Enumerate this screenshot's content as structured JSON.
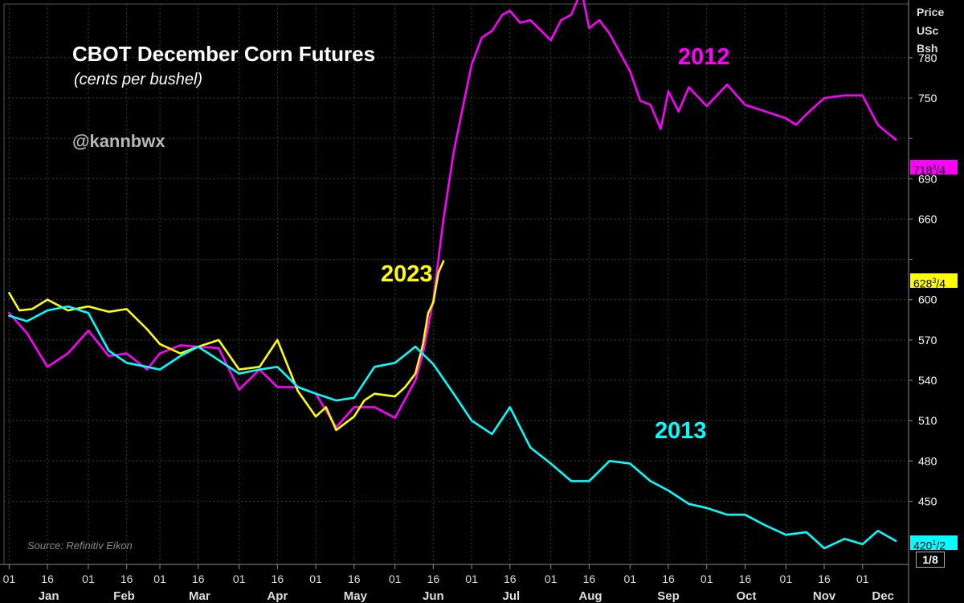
{
  "header": {
    "title": "CBOT December Corn Futures",
    "subtitle": "(cents per bushel)",
    "handle": "@kannbwx",
    "source": "Source: Refinitiv Eikon"
  },
  "y_axis_title": [
    "Price",
    "USc",
    "Bsh"
  ],
  "fraction_label": "1/8",
  "last_values": [
    {
      "main": "718",
      "frac": "3",
      "den": "/4",
      "color": "#ff00ff"
    },
    {
      "main": "628",
      "frac": "3",
      "den": "/4",
      "color": "#ffff00"
    },
    {
      "main": "420",
      "frac": "1",
      "den": "/2",
      "color": "#00ffff"
    }
  ],
  "chart_data": {
    "type": "line",
    "title": "CBOT December Corn Futures",
    "subtitle": "(cents per bushel)",
    "y_unit_label": "Price USc Bsh",
    "ylim": [
      403,
      820
    ],
    "yticks": [
      450,
      480,
      510,
      540,
      570,
      600,
      630,
      660,
      690,
      720,
      750,
      780
    ],
    "ytick_labels": [
      "450",
      "480",
      "510",
      "540",
      "570",
      "600",
      "",
      "660",
      "690",
      "",
      "750",
      "780"
    ],
    "x_day_labels": [
      "01",
      "16",
      "01",
      "16",
      "01",
      "16",
      "01",
      "16",
      "01",
      "16",
      "01",
      "16",
      "01",
      "16",
      "01",
      "16",
      "01",
      "16",
      "01",
      "16",
      "01",
      "16",
      "01"
    ],
    "x_month_labels": [
      "Jan",
      "Feb",
      "Mar",
      "Apr",
      "May",
      "Jun",
      "Jul",
      "Aug",
      "Sep",
      "Oct",
      "Nov",
      "Dec"
    ],
    "grid": true,
    "series": [
      {
        "name": "2012",
        "color": "#ff00ff",
        "x": [
          "Jan 01",
          "Jan 08",
          "Jan 16",
          "Jan 24",
          "Feb 01",
          "Feb 09",
          "Feb 16",
          "Feb 24",
          "Mar 01",
          "Mar 09",
          "Mar 16",
          "Mar 24",
          "Apr 01",
          "Apr 09",
          "Apr 16",
          "Apr 24",
          "May 01",
          "May 09",
          "May 16",
          "May 24",
          "Jun 01",
          "Jun 09",
          "Jun 12",
          "Jun 16",
          "Jun 20",
          "Jun 24",
          "Jul 01",
          "Jul 05",
          "Jul 09",
          "Jul 13",
          "Jul 16",
          "Jul 20",
          "Jul 24",
          "Aug 01",
          "Aug 05",
          "Aug 09",
          "Aug 13",
          "Aug 16",
          "Aug 20",
          "Aug 24",
          "Sep 01",
          "Sep 05",
          "Sep 09",
          "Sep 13",
          "Sep 16",
          "Sep 20",
          "Sep 24",
          "Oct 01",
          "Oct 05",
          "Oct 09",
          "Oct 16",
          "Oct 24",
          "Nov 01",
          "Nov 05",
          "Nov 09",
          "Nov 16",
          "Nov 24",
          "Dec 01",
          "Dec 07",
          "Dec 14"
        ],
        "values": [
          590,
          575,
          550,
          560,
          577,
          558,
          560,
          548,
          560,
          566,
          565,
          564,
          533,
          548,
          535,
          535,
          530,
          505,
          520,
          520,
          512,
          540,
          560,
          600,
          660,
          710,
          775,
          795,
          800,
          812,
          815,
          806,
          808,
          793,
          808,
          812,
          830,
          802,
          808,
          798,
          770,
          748,
          745,
          727,
          755,
          740,
          758,
          744,
          752,
          760,
          745,
          740,
          735,
          730,
          738,
          750,
          752,
          752,
          730,
          719
        ]
      },
      {
        "name": "2023",
        "color": "#ffff00",
        "x": [
          "Jan 01",
          "Jan 05",
          "Jan 10",
          "Jan 16",
          "Jan 24",
          "Feb 01",
          "Feb 09",
          "Feb 16",
          "Feb 24",
          "Mar 01",
          "Mar 09",
          "Mar 16",
          "Mar 24",
          "Apr 01",
          "Apr 09",
          "Apr 16",
          "Apr 24",
          "May 01",
          "May 05",
          "May 09",
          "May 16",
          "May 20",
          "May 24",
          "Jun 01",
          "Jun 05",
          "Jun 09",
          "Jun 12",
          "Jun 14",
          "Jun 16",
          "Jun 18",
          "Jun 20"
        ],
        "values": [
          605,
          592,
          593,
          600,
          592,
          595,
          591,
          593,
          578,
          567,
          560,
          565,
          570,
          548,
          550,
          570,
          532,
          513,
          520,
          503,
          513,
          525,
          530,
          528,
          535,
          545,
          567,
          590,
          598,
          620,
          628.75
        ]
      },
      {
        "name": "2013",
        "color": "#00ffff",
        "x": [
          "Jan 01",
          "Jan 08",
          "Jan 16",
          "Jan 24",
          "Feb 01",
          "Feb 09",
          "Feb 16",
          "Feb 24",
          "Mar 01",
          "Mar 09",
          "Mar 16",
          "Mar 24",
          "Apr 01",
          "Apr 09",
          "Apr 16",
          "Apr 24",
          "May 01",
          "May 09",
          "May 16",
          "May 24",
          "Jun 01",
          "Jun 09",
          "Jun 16",
          "Jun 24",
          "Jul 01",
          "Jul 09",
          "Jul 16",
          "Jul 24",
          "Aug 01",
          "Aug 09",
          "Aug 16",
          "Aug 24",
          "Sep 01",
          "Sep 09",
          "Sep 16",
          "Sep 24",
          "Oct 01",
          "Oct 09",
          "Oct 16",
          "Oct 24",
          "Nov 01",
          "Nov 09",
          "Nov 16",
          "Nov 24",
          "Dec 01",
          "Dec 07",
          "Dec 14"
        ],
        "values": [
          588,
          584,
          592,
          595,
          590,
          562,
          553,
          550,
          548,
          558,
          565,
          555,
          545,
          548,
          550,
          535,
          530,
          525,
          527,
          550,
          553,
          565,
          552,
          530,
          510,
          500,
          520,
          490,
          478,
          465,
          465,
          480,
          478,
          465,
          458,
          448,
          445,
          440,
          440,
          432,
          425,
          427,
          415,
          422,
          418,
          428,
          420.5
        ]
      }
    ]
  }
}
